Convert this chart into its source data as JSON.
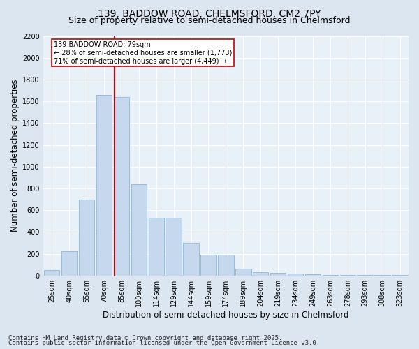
{
  "title": "139, BADDOW ROAD, CHELMSFORD, CM2 7PY",
  "subtitle": "Size of property relative to semi-detached houses in Chelmsford",
  "xlabel": "Distribution of semi-detached houses by size in Chelmsford",
  "ylabel": "Number of semi-detached properties",
  "footer1": "Contains HM Land Registry data © Crown copyright and database right 2025.",
  "footer2": "Contains public sector information licensed under the Open Government Licence v3.0.",
  "categories": [
    "25sqm",
    "40sqm",
    "55sqm",
    "70sqm",
    "85sqm",
    "100sqm",
    "114sqm",
    "129sqm",
    "144sqm",
    "159sqm",
    "174sqm",
    "189sqm",
    "204sqm",
    "219sqm",
    "234sqm",
    "249sqm",
    "263sqm",
    "278sqm",
    "293sqm",
    "308sqm",
    "323sqm"
  ],
  "values": [
    50,
    220,
    700,
    1660,
    1640,
    840,
    530,
    530,
    300,
    190,
    190,
    60,
    30,
    25,
    20,
    10,
    5,
    5,
    3,
    2,
    2
  ],
  "bar_color": "#c5d8ee",
  "bar_edge_color": "#7aadd4",
  "vline_color": "#cc0000",
  "annotation_text": "139 BADDOW ROAD: 79sqm\n← 28% of semi-detached houses are smaller (1,773)\n71% of semi-detached houses are larger (4,449) →",
  "annotation_box_color": "#ffffff",
  "annotation_box_edge": "#cc0000",
  "ylim": [
    0,
    2200
  ],
  "yticks": [
    0,
    200,
    400,
    600,
    800,
    1000,
    1200,
    1400,
    1600,
    1800,
    2000,
    2200
  ],
  "bg_color": "#dce6f0",
  "plot_bg_color": "#e8f0f8",
  "title_fontsize": 10,
  "subtitle_fontsize": 9,
  "axis_label_fontsize": 8.5,
  "tick_fontsize": 7,
  "footer_fontsize": 6.5,
  "vline_x_index": 3.6
}
